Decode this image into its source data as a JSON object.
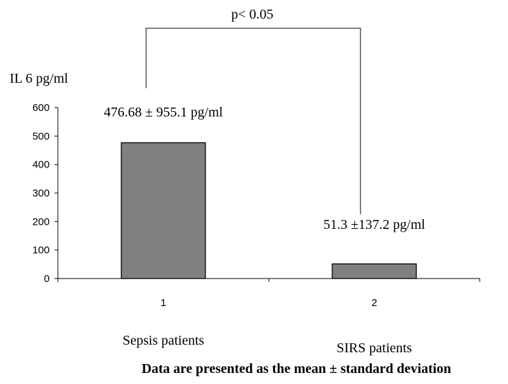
{
  "chart_data": {
    "type": "bar",
    "ylabel": "IL 6 pg/ml",
    "ylim": [
      0,
      600
    ],
    "yticks": [
      0,
      100,
      200,
      300,
      400,
      500,
      600
    ],
    "categories": [
      "1",
      "2"
    ],
    "category_names": [
      "Sepsis patients",
      "SIRS patients"
    ],
    "values": [
      476.68,
      51.3
    ],
    "data_labels": [
      "476.68 ± 955.1  pg/ml",
      "51.3 ±137.2 pg/ml"
    ],
    "significance": "p< 0.05",
    "footnote": "Data are presented as the mean ± standard deviation",
    "grid": false,
    "legend": "none",
    "bar_color": "#808080",
    "bar_edge_color": "#000000"
  }
}
